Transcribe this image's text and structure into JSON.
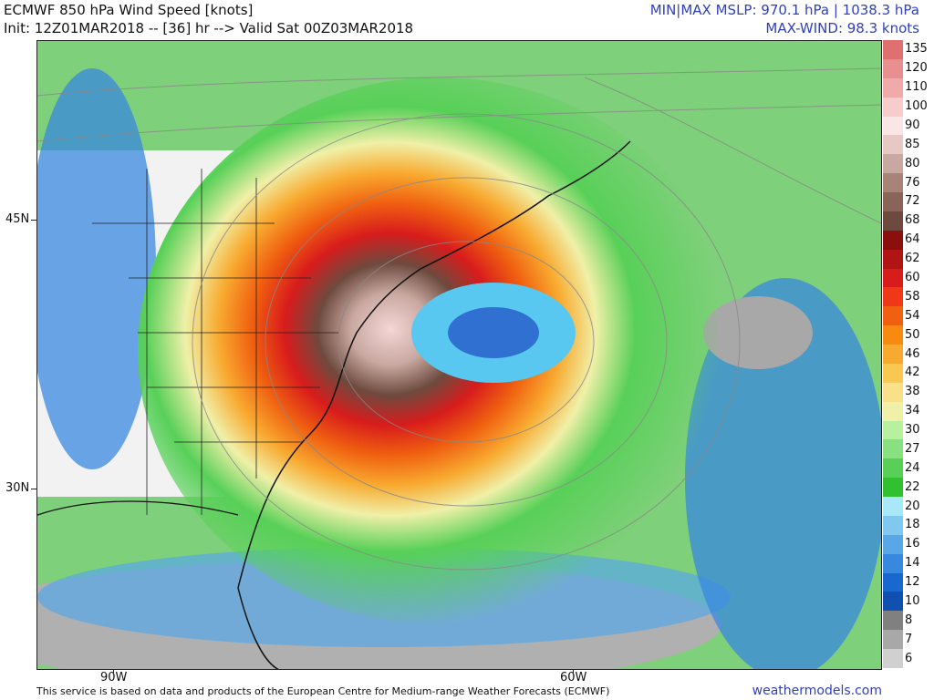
{
  "header": {
    "title": "ECMWF 850 hPa Wind Speed [knots]",
    "init": "Init: 12Z01MAR2018 -- [36] hr --> Valid Sat 00Z03MAR2018",
    "mslp": "MIN|MAX MSLP: 970.1 hPa | 1038.3 hPa",
    "max_wind": "MAX-WIND: 98.3 knots"
  },
  "axes": {
    "lat_labels": [
      "45N",
      "30N"
    ],
    "lon_labels": [
      "90W",
      "60W"
    ]
  },
  "colorbar": {
    "labels": [
      "135",
      "120",
      "110",
      "100",
      "90",
      "85",
      "80",
      "76",
      "72",
      "68",
      "64",
      "62",
      "60",
      "58",
      "54",
      "50",
      "46",
      "42",
      "38",
      "34",
      "30",
      "27",
      "24",
      "22",
      "20",
      "18",
      "16",
      "14",
      "12",
      "10",
      "8",
      "7",
      "6"
    ],
    "colors": [
      "#e07070",
      "#e89090",
      "#f0aaaa",
      "#f6cccc",
      "#fae6e6",
      "#e8c8c4",
      "#c8a8a0",
      "#a88478",
      "#8a6458",
      "#6e4a3e",
      "#8a1010",
      "#b01414",
      "#d81c1c",
      "#f03818",
      "#f06010",
      "#f88a10",
      "#f8aa30",
      "#f8c850",
      "#fae088",
      "#f0f0a8",
      "#b8f0a0",
      "#88e080",
      "#58d058",
      "#30c030",
      "#a8e8f8",
      "#80c8f0",
      "#58a8e8",
      "#3888e0",
      "#1868d0",
      "#1050b0",
      "#808080",
      "#a8a8a8",
      "#d0d0d0"
    ]
  },
  "footer": {
    "credit": "This service is based on data and products of the European Centre for Medium-range Weather Forecasts (ECMWF)",
    "site": "weathermodels.com"
  }
}
